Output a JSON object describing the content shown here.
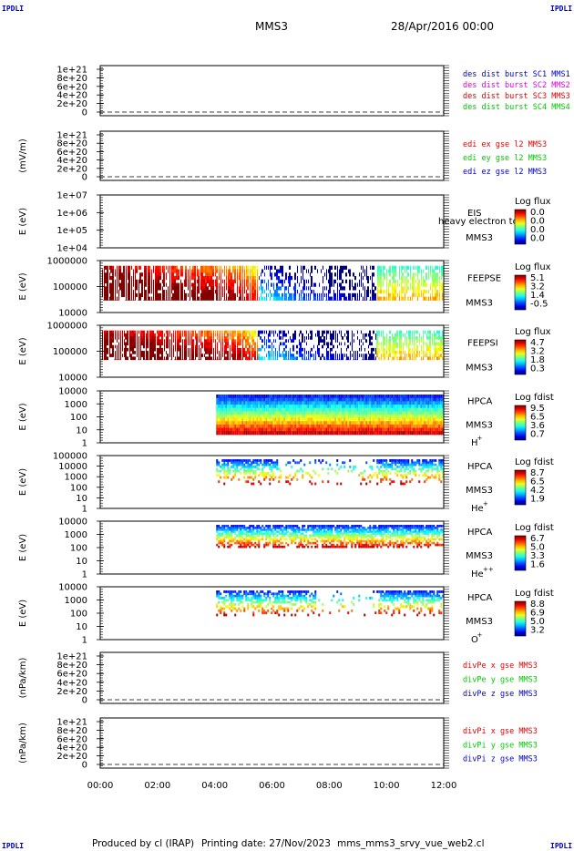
{
  "corner_label": "IPDLI",
  "header": {
    "spacecraft": "MMS3",
    "date": "28/Apr/2016 00:00"
  },
  "footer": {
    "produced_by": "Produced by cl (IRAP)",
    "printing_date": "Printing date: 27/Nov/2023",
    "script": "mms_mms3_srvy_vue_web2.cl"
  },
  "colors": {
    "red": "#e00000",
    "magenta": "#e000e0",
    "green": "#00c800",
    "blue": "#0000c8"
  },
  "chart_data": [
    {
      "id": "des",
      "type": "line",
      "ylabel": "",
      "ylim": [
        0,
        1e+21
      ],
      "yticks": [
        "0",
        "2e+20",
        "4e+20",
        "6e+20",
        "8e+20",
        "1e+21"
      ],
      "legend": [
        {
          "text": "des dist burst SC1 MMS1",
          "color": "#0000c8"
        },
        {
          "text": "des dist burst SC2 MMS2",
          "color": "#e000e0"
        },
        {
          "text": "des dist burst SC3 MMS3",
          "color": "#e00000"
        },
        {
          "text": "des dist burst SC4 MMS4",
          "color": "#00c800"
        }
      ]
    },
    {
      "id": "edi",
      "type": "line",
      "ylabel": "(mV/m)",
      "ylim": [
        0,
        1e+21
      ],
      "yticks": [
        "0",
        "2e+20",
        "4e+20",
        "6e+20",
        "8e+20",
        "1e+21"
      ],
      "legend": [
        {
          "text": "edi ex gse l2 MMS3",
          "color": "#e00000"
        },
        {
          "text": "edi ey gse l2 MMS3",
          "color": "#00c800"
        },
        {
          "text": "edi ez gse l2 MMS3",
          "color": "#0000c8"
        }
      ]
    },
    {
      "id": "eis",
      "type": "heatmap",
      "ylabel": "E (eV)",
      "scale": "log",
      "yticks": [
        "1e+04",
        "1e+05",
        "1e+06",
        "1e+07"
      ],
      "side_labels": [
        "EIS",
        "MMS3"
      ],
      "overlap_text": "heavy electron to",
      "cbar": {
        "title": "Log flux",
        "ticks": [
          "0.0",
          "0.0",
          "0.0",
          "0.0"
        ]
      }
    },
    {
      "id": "feepse",
      "type": "heatmap",
      "ylabel": "E (eV)",
      "scale": "log",
      "yticks": [
        "10000",
        "100000",
        "1000000"
      ],
      "side_labels": [
        "FEEPSE",
        "MMS3"
      ],
      "cbar": {
        "title": "Log flux",
        "ticks": [
          "5.1",
          "3.2",
          "1.4",
          "-0.5"
        ]
      }
    },
    {
      "id": "feepsi",
      "type": "heatmap",
      "ylabel": "E (eV)",
      "scale": "log",
      "yticks": [
        "10000",
        "100000",
        "1000000"
      ],
      "side_labels": [
        "FEEPSI",
        "MMS3"
      ],
      "cbar": {
        "title": "Log flux",
        "ticks": [
          "4.7",
          "3.2",
          "1.8",
          "0.3"
        ]
      }
    },
    {
      "id": "hpca_h",
      "type": "heatmap",
      "ylabel": "E (eV)",
      "scale": "log",
      "yticks": [
        "1",
        "10",
        "100",
        "1000",
        "10000"
      ],
      "side_labels": [
        "HPCA",
        "MMS3"
      ],
      "species": "H",
      "charge": "+",
      "cbar": {
        "title": "Log fdist",
        "ticks": [
          "9.5",
          "6.5",
          "3.6",
          "0.7"
        ]
      }
    },
    {
      "id": "hpca_he",
      "type": "heatmap",
      "ylabel": "E (eV)",
      "scale": "log",
      "yticks": [
        "1",
        "10",
        "100",
        "1000",
        "10000",
        "100000"
      ],
      "side_labels": [
        "HPCA",
        "MMS3"
      ],
      "species": "He",
      "charge": "+",
      "cbar": {
        "title": "Log fdist",
        "ticks": [
          "8.7",
          "6.5",
          "4.2",
          "1.9"
        ]
      }
    },
    {
      "id": "hpca_hepp",
      "type": "heatmap",
      "ylabel": "E (eV)",
      "scale": "log",
      "yticks": [
        "1",
        "10",
        "100",
        "1000",
        "10000"
      ],
      "side_labels": [
        "HPCA",
        "MMS3"
      ],
      "species": "He",
      "charge": "++",
      "cbar": {
        "title": "Log fdist",
        "ticks": [
          "6.7",
          "5.0",
          "3.3",
          "1.6"
        ]
      }
    },
    {
      "id": "hpca_o",
      "type": "heatmap",
      "ylabel": "E (eV)",
      "scale": "log",
      "yticks": [
        "1",
        "10",
        "100",
        "1000",
        "10000"
      ],
      "side_labels": [
        "HPCA",
        "MMS3"
      ],
      "species": "O",
      "charge": "+",
      "cbar": {
        "title": "Log fdist",
        "ticks": [
          "8.8",
          "6.9",
          "5.0",
          "3.2"
        ]
      }
    },
    {
      "id": "divpe",
      "type": "line",
      "ylabel": "(nPa/km)",
      "ylim": [
        0,
        1e+21
      ],
      "yticks": [
        "0",
        "2e+20",
        "4e+20",
        "6e+20",
        "8e+20",
        "1e+21"
      ],
      "legend": [
        {
          "text": "divPe x gse MMS3",
          "color": "#e00000"
        },
        {
          "text": "divPe y gse MMS3",
          "color": "#00c800"
        },
        {
          "text": "divPe z gse MMS3",
          "color": "#0000c8"
        }
      ]
    },
    {
      "id": "divpi",
      "type": "line",
      "ylabel": "(nPa/km)",
      "ylim": [
        0,
        1e+21
      ],
      "yticks": [
        "0",
        "2e+20",
        "4e+20",
        "6e+20",
        "8e+20",
        "1e+21"
      ],
      "legend": [
        {
          "text": "divPi x gse MMS3",
          "color": "#e00000"
        },
        {
          "text": "divPi y gse MMS3",
          "color": "#00c800"
        },
        {
          "text": "divPi z gse MMS3",
          "color": "#0000c8"
        }
      ]
    }
  ],
  "time_axis": {
    "ticks": [
      "00:00",
      "02:00",
      "04:00",
      "06:00",
      "08:00",
      "10:00",
      "12:00"
    ]
  }
}
